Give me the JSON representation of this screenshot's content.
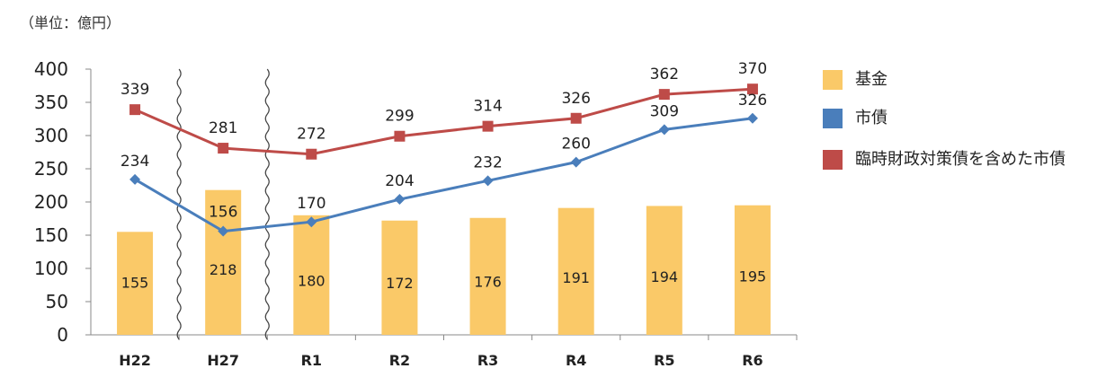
{
  "unit_label": "（単位：億円）",
  "chart_data": {
    "type": "bar",
    "categories": [
      "H22",
      "H27",
      "R1",
      "R2",
      "R3",
      "R4",
      "R5",
      "R6"
    ],
    "ylim": [
      0,
      400
    ],
    "yticks": [
      0,
      50,
      100,
      150,
      200,
      250,
      300,
      350,
      400
    ],
    "grid": false,
    "legend_position": "right",
    "axis_breaks_after": [
      "H22",
      "H27"
    ],
    "series": [
      {
        "name": "基金",
        "type": "bar",
        "color": "#FAC968",
        "values": [
          155,
          218,
          180,
          172,
          176,
          191,
          194,
          195
        ]
      },
      {
        "name": "市債",
        "type": "line",
        "marker": "diamond",
        "color": "#4A7EBB",
        "values": [
          234,
          156,
          170,
          204,
          232,
          260,
          309,
          326
        ]
      },
      {
        "name": "臨時財政対策債を含めた市債",
        "type": "line",
        "marker": "square",
        "color": "#BE4B48",
        "values": [
          339,
          281,
          272,
          299,
          314,
          326,
          362,
          370
        ]
      }
    ]
  }
}
